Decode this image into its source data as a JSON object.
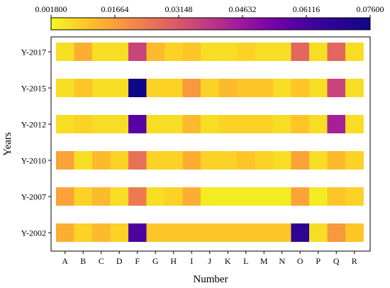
{
  "chart_data": {
    "type": "heatmap",
    "xlabel": "Number",
    "ylabel": "Years",
    "x_categories": [
      "A",
      "B",
      "C",
      "D",
      "F",
      "G",
      "H",
      "I",
      "J",
      "K",
      "L",
      "M",
      "N",
      "O",
      "P",
      "Q",
      "R"
    ],
    "y_categories": [
      "Y-2017",
      "Y-2015",
      "Y-2012",
      "Y-2010",
      "Y-2007",
      "Y-2002"
    ],
    "colorbar": {
      "min": 0.0018,
      "max": 0.076,
      "tick_labels": [
        "0.001800",
        "0.01664",
        "0.03148",
        "0.04632",
        "0.06116",
        "0.07600"
      ],
      "colormap": "plasma_r"
    },
    "values": [
      [
        0.006,
        0.014,
        0.006,
        0.006,
        0.036,
        0.012,
        0.008,
        0.01,
        0.006,
        0.006,
        0.008,
        0.006,
        0.006,
        0.028,
        0.006,
        0.028,
        0.006
      ],
      [
        0.006,
        0.01,
        0.006,
        0.006,
        0.076,
        0.008,
        0.008,
        0.018,
        0.008,
        0.012,
        0.01,
        0.01,
        0.006,
        0.01,
        0.006,
        0.036,
        0.006
      ],
      [
        0.006,
        0.008,
        0.006,
        0.006,
        0.058,
        0.006,
        0.006,
        0.012,
        0.006,
        0.008,
        0.008,
        0.008,
        0.006,
        0.01,
        0.006,
        0.044,
        0.006
      ],
      [
        0.016,
        0.006,
        0.012,
        0.008,
        0.026,
        0.008,
        0.008,
        0.014,
        0.008,
        0.008,
        0.01,
        0.008,
        0.006,
        0.016,
        0.006,
        0.012,
        0.008
      ],
      [
        0.016,
        0.008,
        0.012,
        0.006,
        0.024,
        0.006,
        0.008,
        0.014,
        0.004,
        0.004,
        0.004,
        0.004,
        0.004,
        0.016,
        0.004,
        0.01,
        0.008
      ],
      [
        0.014,
        0.008,
        0.012,
        0.008,
        0.06,
        0.01,
        0.01,
        0.01,
        0.01,
        0.01,
        0.01,
        0.01,
        0.01,
        0.068,
        0.006,
        0.018,
        0.01
      ]
    ],
    "grid": false
  }
}
